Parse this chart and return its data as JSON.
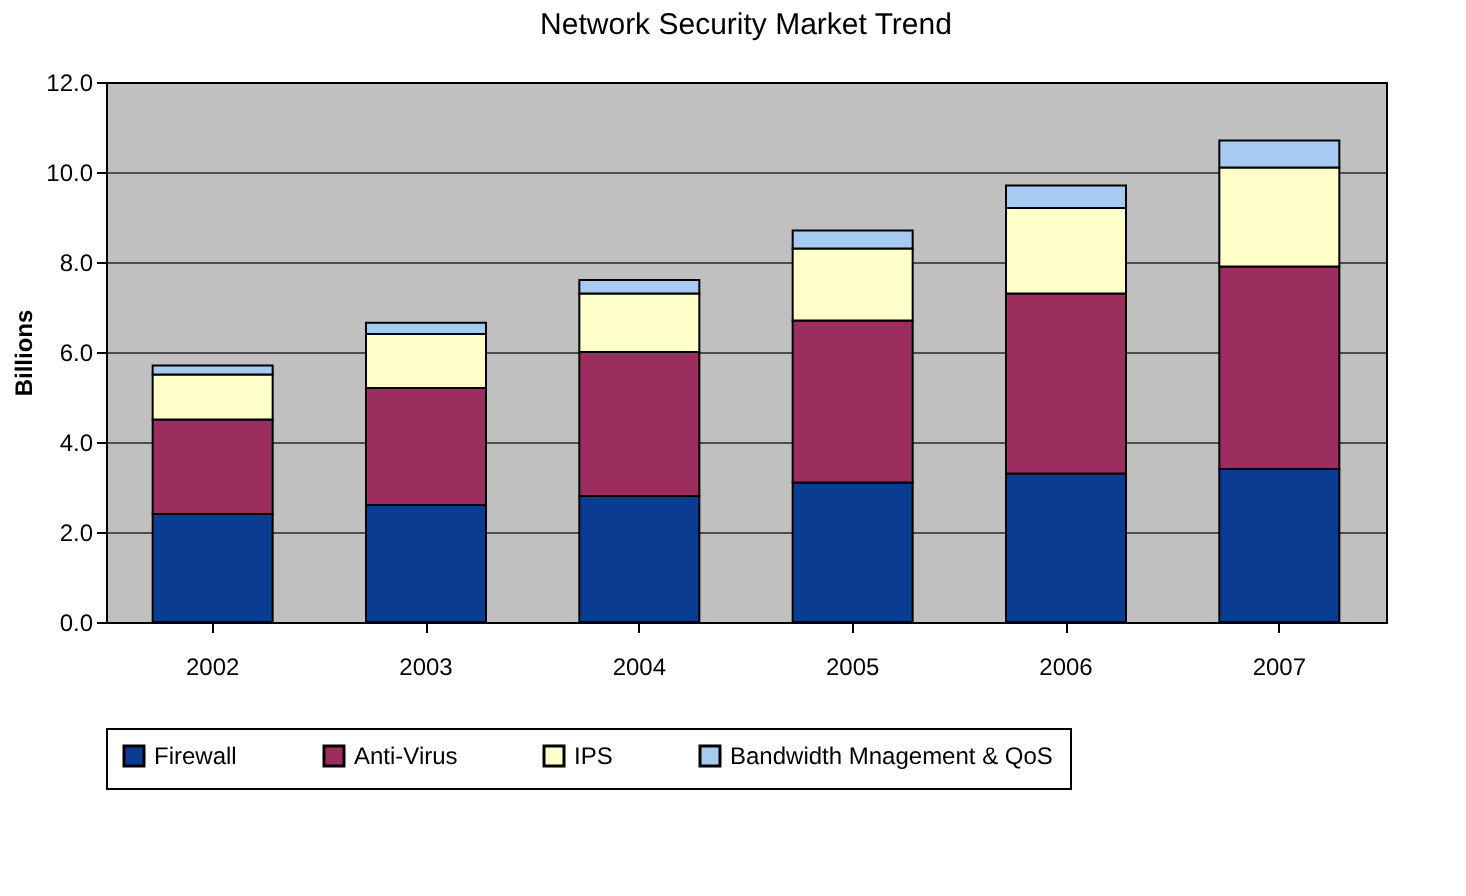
{
  "chart_data": {
    "type": "bar",
    "title": "Network Security Market Trend",
    "ylabel": "Billions",
    "categories": [
      "2002",
      "2003",
      "2004",
      "2005",
      "2006",
      "2007"
    ],
    "stacked": true,
    "series": [
      {
        "name": "Firewall",
        "color": "#0a3d91",
        "values": [
          2.4,
          2.6,
          2.8,
          3.1,
          3.3,
          3.4
        ]
      },
      {
        "name": "Anti-Virus",
        "color": "#9b2e5f",
        "values": [
          2.1,
          2.6,
          3.2,
          3.6,
          4.0,
          4.5
        ]
      },
      {
        "name": "IPS",
        "color": "#ffffcc",
        "values": [
          1.0,
          1.2,
          1.3,
          1.6,
          1.9,
          2.2
        ]
      },
      {
        "name": "Bandwidth Mnagement & QoS",
        "color": "#a6caf0",
        "values": [
          0.2,
          0.25,
          0.3,
          0.4,
          0.5,
          0.6
        ]
      }
    ],
    "ylim": [
      0,
      12
    ],
    "yticks": [
      {
        "value": 0,
        "label": "0.0"
      },
      {
        "value": 2,
        "label": "2.0"
      },
      {
        "value": 4,
        "label": "4.0"
      },
      {
        "value": 6,
        "label": "6.0"
      },
      {
        "value": 8,
        "label": "8.0"
      },
      {
        "value": 10,
        "label": "10.0"
      },
      {
        "value": 12,
        "label": "12.0"
      }
    ],
    "grid": "y",
    "legend": "bottom"
  }
}
